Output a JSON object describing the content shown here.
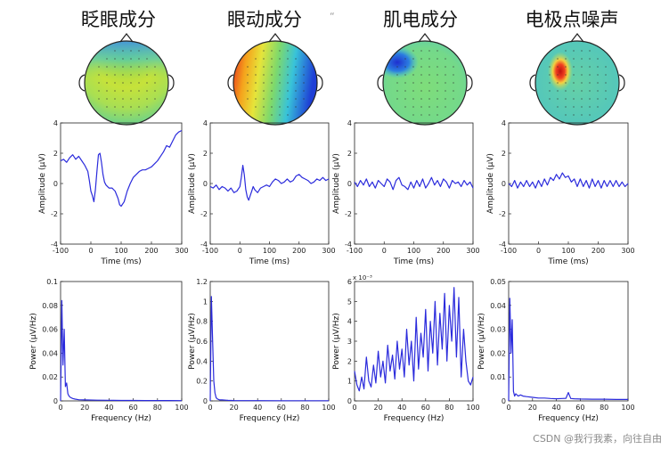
{
  "titles": [
    "眨眼成分",
    "眼动成分",
    "肌电成分",
    "电极点噪声"
  ],
  "stray_mark": "“",
  "watermark": "CSDN @我行我素，向往自由",
  "colors": {
    "trace": "#2b2bdc",
    "axis": "#222222"
  },
  "chart_data": [
    {
      "type": "line",
      "component": "blink",
      "row": "time",
      "xlabel": "Time (ms)",
      "ylabel": "Amplitude (μV)",
      "xlim": [
        -100,
        300
      ],
      "ylim": [
        -4,
        4
      ],
      "xticks": [
        -100,
        0,
        100,
        200,
        300
      ],
      "yticks": [
        4,
        2,
        0,
        -2,
        -4
      ],
      "x": [
        -100,
        -90,
        -80,
        -70,
        -60,
        -50,
        -40,
        -30,
        -20,
        -10,
        -5,
        0,
        5,
        10,
        15,
        20,
        25,
        30,
        35,
        40,
        45,
        50,
        55,
        60,
        70,
        80,
        90,
        95,
        100,
        110,
        120,
        130,
        140,
        150,
        160,
        170,
        180,
        190,
        200,
        210,
        220,
        230,
        240,
        250,
        260,
        270,
        280,
        290,
        300
      ],
      "y": [
        1.5,
        1.6,
        1.4,
        1.7,
        1.9,
        1.6,
        1.8,
        1.5,
        1.2,
        0.8,
        0.2,
        -0.5,
        -0.8,
        -1.2,
        -0.4,
        0.8,
        1.9,
        2.0,
        1.4,
        0.6,
        0.1,
        -0.1,
        -0.2,
        -0.3,
        -0.3,
        -0.5,
        -1.0,
        -1.4,
        -1.5,
        -1.2,
        -0.5,
        0.0,
        0.4,
        0.6,
        0.8,
        0.9,
        0.9,
        1.0,
        1.1,
        1.3,
        1.5,
        1.8,
        2.1,
        2.5,
        2.4,
        2.8,
        3.2,
        3.4,
        3.5
      ]
    },
    {
      "type": "line",
      "component": "eye-movement",
      "row": "time",
      "xlabel": "Time (ms)",
      "ylabel": "Amplitude (μV)",
      "xlim": [
        -100,
        300
      ],
      "ylim": [
        -4,
        4
      ],
      "xticks": [
        -100,
        0,
        100,
        200,
        300
      ],
      "yticks": [
        4,
        2,
        0,
        -2,
        -4
      ],
      "x": [
        -100,
        -90,
        -80,
        -70,
        -60,
        -50,
        -40,
        -30,
        -20,
        -10,
        0,
        5,
        10,
        15,
        20,
        25,
        30,
        35,
        40,
        45,
        50,
        55,
        60,
        70,
        80,
        90,
        100,
        110,
        120,
        130,
        140,
        150,
        160,
        170,
        180,
        190,
        200,
        210,
        220,
        230,
        240,
        250,
        260,
        270,
        280,
        290,
        300
      ],
      "y": [
        -0.2,
        -0.3,
        -0.1,
        -0.4,
        -0.2,
        -0.3,
        -0.5,
        -0.3,
        -0.6,
        -0.5,
        -0.2,
        0.4,
        1.2,
        0.6,
        -0.4,
        -0.9,
        -1.1,
        -0.8,
        -0.5,
        -0.2,
        -0.4,
        -0.5,
        -0.6,
        -0.3,
        -0.2,
        -0.1,
        -0.2,
        0.1,
        0.3,
        0.2,
        0.0,
        0.1,
        0.3,
        0.1,
        0.2,
        0.5,
        0.6,
        0.4,
        0.3,
        0.2,
        0.0,
        0.1,
        0.3,
        0.2,
        0.4,
        0.2,
        0.3
      ]
    },
    {
      "type": "line",
      "component": "muscle",
      "row": "time",
      "xlabel": "Time (ms)",
      "ylabel": "Amplitude (μV)",
      "xlim": [
        -100,
        300
      ],
      "ylim": [
        -4,
        4
      ],
      "xticks": [
        -100,
        0,
        100,
        200,
        300
      ],
      "yticks": [
        4,
        2,
        0,
        -2,
        -4
      ],
      "x": [
        -100,
        -90,
        -80,
        -70,
        -60,
        -50,
        -40,
        -30,
        -20,
        -10,
        0,
        10,
        20,
        30,
        40,
        50,
        60,
        70,
        80,
        90,
        100,
        110,
        120,
        130,
        140,
        150,
        160,
        170,
        180,
        190,
        200,
        210,
        220,
        230,
        240,
        250,
        260,
        270,
        280,
        290,
        300
      ],
      "y": [
        0.1,
        -0.2,
        0.2,
        -0.1,
        0.3,
        -0.2,
        0.1,
        -0.3,
        0.2,
        0.0,
        -0.2,
        0.3,
        0.1,
        -0.4,
        0.2,
        0.4,
        -0.1,
        -0.2,
        -0.4,
        0.1,
        -0.3,
        0.2,
        -0.2,
        0.3,
        -0.3,
        0.0,
        0.4,
        -0.1,
        0.2,
        -0.2,
        0.3,
        0.1,
        -0.3,
        0.2,
        0.0,
        0.1,
        -0.2,
        0.2,
        -0.1,
        0.1,
        -0.3
      ]
    },
    {
      "type": "line",
      "component": "electrode-noise",
      "row": "time",
      "xlabel": "Time (ms)",
      "ylabel": "Amplitude (μV)",
      "xlim": [
        -100,
        300
      ],
      "ylim": [
        -4,
        4
      ],
      "xticks": [
        -100,
        0,
        100,
        200,
        300
      ],
      "yticks": [
        4,
        2,
        0,
        -2,
        -4
      ],
      "x": [
        -100,
        -90,
        -80,
        -70,
        -60,
        -50,
        -40,
        -30,
        -20,
        -10,
        0,
        10,
        20,
        30,
        40,
        50,
        60,
        70,
        80,
        90,
        100,
        110,
        120,
        130,
        140,
        150,
        160,
        170,
        180,
        190,
        200,
        210,
        220,
        230,
        240,
        250,
        260,
        270,
        280,
        290,
        300
      ],
      "y": [
        0.0,
        -0.2,
        0.2,
        -0.3,
        0.1,
        -0.2,
        0.2,
        -0.2,
        0.1,
        -0.3,
        0.2,
        -0.2,
        0.3,
        -0.1,
        0.4,
        0.2,
        0.6,
        0.3,
        0.7,
        0.4,
        0.5,
        0.1,
        0.3,
        -0.2,
        0.3,
        -0.2,
        0.2,
        -0.3,
        0.3,
        -0.2,
        0.2,
        -0.3,
        0.2,
        -0.2,
        0.2,
        -0.2,
        0.2,
        -0.2,
        0.1,
        -0.2,
        0.0
      ]
    },
    {
      "type": "line",
      "component": "blink",
      "row": "spectrum",
      "xlabel": "Frequency (Hz)",
      "ylabel": "Power (μV/Hz)",
      "xlim": [
        0,
        100
      ],
      "ylim": [
        0,
        0.1
      ],
      "exponent": "",
      "xticks": [
        0,
        20,
        40,
        60,
        80,
        100
      ],
      "yticks": [
        0.1,
        0.08,
        0.06,
        0.04,
        0.02,
        0
      ],
      "x": [
        0,
        1,
        2,
        3,
        4,
        5,
        6,
        7,
        8,
        10,
        12,
        15,
        20,
        30,
        40,
        50,
        60,
        70,
        80,
        90,
        100
      ],
      "y": [
        0.0,
        0.084,
        0.03,
        0.06,
        0.012,
        0.015,
        0.006,
        0.004,
        0.003,
        0.002,
        0.0015,
        0.001,
        0.0008,
        0.0006,
        0.0005,
        0.0004,
        0.0004,
        0.0003,
        0.0003,
        0.0003,
        0.0002
      ]
    },
    {
      "type": "line",
      "component": "eye-movement",
      "row": "spectrum",
      "xlabel": "Frequency (Hz)",
      "ylabel": "Power (μV/Hz)",
      "xlim": [
        0,
        100
      ],
      "ylim": [
        0,
        1.2
      ],
      "exponent": "",
      "xticks": [
        0,
        20,
        40,
        60,
        80,
        100
      ],
      "yticks": [
        1.2,
        1,
        0.8,
        0.6,
        0.4,
        0.2,
        0
      ],
      "x": [
        0,
        1,
        2,
        3,
        4,
        5,
        6,
        8,
        10,
        15,
        20,
        40,
        60,
        80,
        100
      ],
      "y": [
        0.0,
        1.05,
        0.6,
        0.2,
        0.08,
        0.03,
        0.02,
        0.01,
        0.01,
        0.005,
        0.004,
        0.003,
        0.002,
        0.002,
        0.002
      ]
    },
    {
      "type": "line",
      "component": "muscle",
      "row": "spectrum",
      "xlabel": "Frequency (Hz)",
      "ylabel": "Power (μV/Hz)",
      "xlim": [
        0,
        100
      ],
      "ylim": [
        0,
        6
      ],
      "exponent": "x 10⁻³",
      "xticks": [
        0,
        20,
        40,
        60,
        80,
        100
      ],
      "yticks": [
        6,
        5,
        4,
        3,
        2,
        1,
        0
      ],
      "x": [
        0,
        2,
        4,
        6,
        8,
        10,
        12,
        14,
        16,
        18,
        20,
        22,
        24,
        26,
        28,
        30,
        32,
        34,
        36,
        38,
        40,
        42,
        44,
        46,
        48,
        50,
        52,
        54,
        56,
        58,
        60,
        62,
        64,
        66,
        68,
        70,
        72,
        74,
        76,
        78,
        80,
        82,
        84,
        86,
        88,
        90,
        92,
        94,
        96,
        98,
        100
      ],
      "y": [
        1.5,
        0.8,
        0.5,
        1.2,
        0.6,
        2.2,
        1.0,
        0.7,
        1.8,
        0.9,
        2.5,
        1.2,
        2.0,
        0.9,
        2.8,
        1.5,
        2.3,
        1.1,
        3.0,
        1.6,
        2.6,
        1.2,
        3.6,
        1.8,
        3.0,
        1.0,
        4.2,
        1.6,
        3.4,
        2.2,
        4.6,
        1.5,
        4.0,
        2.4,
        5.0,
        1.8,
        4.4,
        2.6,
        5.4,
        2.0,
        4.8,
        3.0,
        5.7,
        2.2,
        5.2,
        1.2,
        3.6,
        2.0,
        1.0,
        0.8,
        1.2
      ]
    },
    {
      "type": "line",
      "component": "electrode-noise",
      "row": "spectrum",
      "xlabel": "Frequency (Hz)",
      "ylabel": "Power (μV/Hz)",
      "xlim": [
        0,
        100
      ],
      "ylim": [
        0,
        0.05
      ],
      "exponent": "",
      "xticks": [
        0,
        20,
        40,
        60,
        80,
        100
      ],
      "yticks": [
        0.05,
        0.04,
        0.03,
        0.02,
        0.01,
        0
      ],
      "x": [
        0,
        1,
        2,
        3,
        4,
        5,
        6,
        8,
        10,
        12,
        15,
        20,
        25,
        30,
        35,
        40,
        45,
        48,
        50,
        52,
        55,
        60,
        70,
        80,
        90,
        100
      ],
      "y": [
        0.0,
        0.043,
        0.02,
        0.034,
        0.004,
        0.002,
        0.003,
        0.002,
        0.0025,
        0.002,
        0.0018,
        0.0015,
        0.0012,
        0.0012,
        0.001,
        0.0009,
        0.001,
        0.0011,
        0.0035,
        0.001,
        0.0009,
        0.0008,
        0.0007,
        0.0007,
        0.0006,
        0.0006
      ]
    }
  ]
}
